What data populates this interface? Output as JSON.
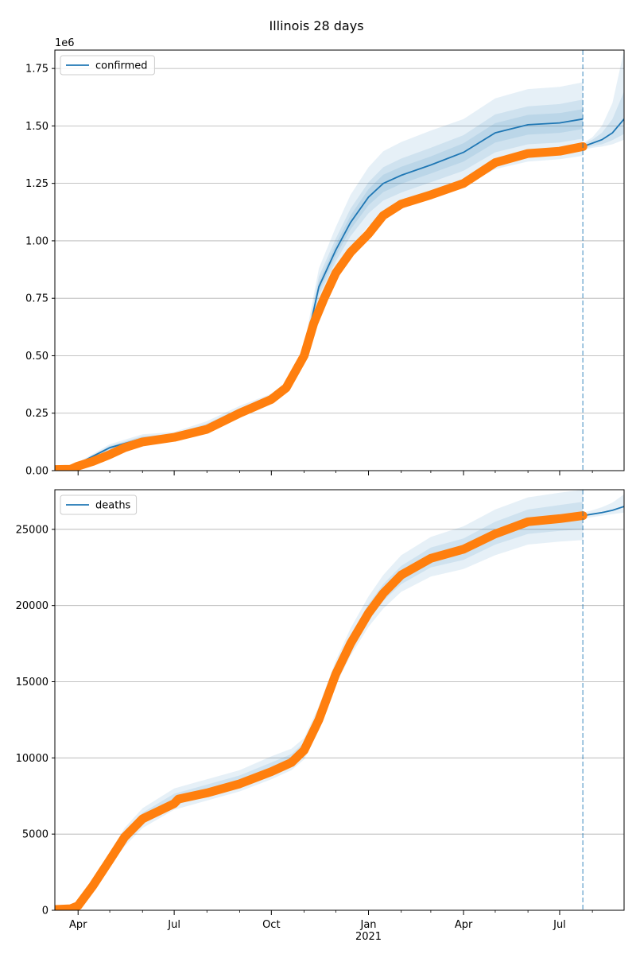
{
  "figure": {
    "title": "Illinois 28 days"
  },
  "colors": {
    "model": "#1f77b4",
    "observed": "#ff7f0e",
    "band": "#1f77b4",
    "grid": "#b0b0b0",
    "forecast_line": "#1f77b4"
  },
  "chart_data": [
    {
      "type": "line",
      "name": "confirmed",
      "legend_location": "upper left",
      "grid": "y",
      "xlim": [
        "2020-03-10",
        "2021-08-31"
      ],
      "ylim": [
        0,
        1830000
      ],
      "y_offset_label": "1e6",
      "y_ticks": [
        0,
        250000,
        500000,
        750000,
        1000000,
        1250000,
        1500000,
        1750000
      ],
      "y_tick_labels": [
        "0.00",
        "0.25",
        "0.50",
        "0.75",
        "1.00",
        "1.25",
        "1.50",
        "1.75"
      ],
      "forecast_start": "2021-07-23",
      "series": [
        {
          "name": "confirmed",
          "role": "model",
          "x": [
            "2020-03-10",
            "2020-04-01",
            "2020-05-01",
            "2020-06-01",
            "2020-07-01",
            "2020-08-01",
            "2020-09-01",
            "2020-10-01",
            "2020-10-20",
            "2020-11-01",
            "2020-11-15",
            "2020-12-01",
            "2020-12-15",
            "2021-01-01",
            "2021-01-15",
            "2021-02-01",
            "2021-03-01",
            "2021-04-01",
            "2021-05-01",
            "2021-06-01",
            "2021-07-01",
            "2021-07-23"
          ],
          "values": [
            5000,
            30000,
            100000,
            140000,
            150000,
            195000,
            260000,
            310000,
            380000,
            510000,
            800000,
            960000,
            1080000,
            1190000,
            1250000,
            1285000,
            1330000,
            1385000,
            1470000,
            1505000,
            1513000,
            1530000
          ]
        },
        {
          "name": "confirmed forecast",
          "role": "forecast",
          "x": [
            "2021-07-23",
            "2021-08-01",
            "2021-08-10",
            "2021-08-20",
            "2021-08-31"
          ],
          "values": [
            1410000,
            1425000,
            1440000,
            1470000,
            1530000
          ]
        },
        {
          "name": "confirmed observed",
          "role": "observed",
          "x": [
            "2020-03-10",
            "2020-03-25",
            "2020-04-01",
            "2020-04-15",
            "2020-05-01",
            "2020-05-15",
            "2020-06-01",
            "2020-07-01",
            "2020-08-01",
            "2020-09-01",
            "2020-10-01",
            "2020-10-15",
            "2020-11-01",
            "2020-11-10",
            "2020-11-20",
            "2020-12-01",
            "2020-12-15",
            "2021-01-01",
            "2021-01-15",
            "2021-02-01",
            "2021-03-01",
            "2021-04-01",
            "2021-05-01",
            "2021-06-01",
            "2021-07-01",
            "2021-07-23"
          ],
          "values": [
            5000,
            6000,
            20000,
            40000,
            70000,
            100000,
            125000,
            145000,
            180000,
            250000,
            310000,
            360000,
            500000,
            640000,
            750000,
            860000,
            950000,
            1030000,
            1110000,
            1160000,
            1200000,
            1250000,
            1340000,
            1380000,
            1390000,
            1410000
          ]
        }
      ],
      "bands": [
        {
          "level": 1,
          "x": [
            "2020-03-10",
            "2020-04-01",
            "2020-05-01",
            "2020-06-01",
            "2020-07-01",
            "2020-08-01",
            "2020-09-01",
            "2020-10-01",
            "2020-10-20",
            "2020-11-01",
            "2020-11-15",
            "2020-12-01",
            "2020-12-15",
            "2021-01-01",
            "2021-01-15",
            "2021-02-01",
            "2021-03-01",
            "2021-04-01",
            "2021-05-01",
            "2021-06-01",
            "2021-07-01",
            "2021-07-23"
          ],
          "lower": [
            4000,
            22000,
            80000,
            122000,
            135000,
            178000,
            240000,
            290000,
            362000,
            490000,
            730000,
            870000,
            970000,
            1065000,
            1115000,
            1150000,
            1190000,
            1238000,
            1312000,
            1345000,
            1355000,
            1370000
          ],
          "upper": [
            6000,
            36000,
            115000,
            158000,
            168000,
            215000,
            282000,
            335000,
            405000,
            545000,
            880000,
            1060000,
            1200000,
            1320000,
            1390000,
            1430000,
            1480000,
            1530000,
            1620000,
            1660000,
            1670000,
            1690000
          ]
        },
        {
          "level": 2,
          "x": [
            "2020-03-10",
            "2020-04-01",
            "2020-05-01",
            "2020-06-01",
            "2020-07-01",
            "2020-08-01",
            "2020-09-01",
            "2020-10-01",
            "2020-10-20",
            "2020-11-01",
            "2020-11-15",
            "2020-12-01",
            "2020-12-15",
            "2021-01-01",
            "2021-01-15",
            "2021-02-01",
            "2021-03-01",
            "2021-04-01",
            "2021-05-01",
            "2021-06-01",
            "2021-07-01",
            "2021-07-23"
          ],
          "lower": [
            4500,
            25000,
            88000,
            130000,
            142000,
            186000,
            250000,
            300000,
            370000,
            500000,
            760000,
            910000,
            1020000,
            1120000,
            1175000,
            1210000,
            1255000,
            1305000,
            1385000,
            1420000,
            1428000,
            1445000
          ],
          "upper": [
            5500,
            33000,
            108000,
            150000,
            160000,
            205000,
            272000,
            322000,
            392000,
            528000,
            845000,
            1010000,
            1140000,
            1255000,
            1320000,
            1358000,
            1405000,
            1460000,
            1550000,
            1585000,
            1595000,
            1615000
          ]
        },
        {
          "level": 3,
          "x": [
            "2020-03-10",
            "2020-04-01",
            "2020-05-01",
            "2020-06-01",
            "2020-07-01",
            "2020-08-01",
            "2020-09-01",
            "2020-10-01",
            "2020-10-20",
            "2020-11-01",
            "2020-11-15",
            "2020-12-01",
            "2020-12-15",
            "2021-01-01",
            "2021-01-15",
            "2021-02-01",
            "2021-03-01",
            "2021-04-01",
            "2021-05-01",
            "2021-06-01",
            "2021-07-01",
            "2021-07-23"
          ],
          "lower": [
            4800,
            27000,
            93000,
            134000,
            146000,
            190000,
            255000,
            305000,
            375000,
            505000,
            780000,
            935000,
            1050000,
            1155000,
            1212000,
            1248000,
            1293000,
            1345000,
            1428000,
            1462000,
            1470000,
            1487000
          ],
          "upper": [
            5200,
            32000,
            105000,
            146000,
            155000,
            200000,
            265000,
            315000,
            385000,
            518000,
            820000,
            985000,
            1110000,
            1225000,
            1288000,
            1322000,
            1367000,
            1425000,
            1512000,
            1548000,
            1556000,
            1573000
          ]
        },
        {
          "level": 1,
          "x": [
            "2021-07-23",
            "2021-08-01",
            "2021-08-10",
            "2021-08-20",
            "2021-08-31"
          ],
          "lower": [
            1395000,
            1405000,
            1410000,
            1420000,
            1440000
          ],
          "upper": [
            1425000,
            1450000,
            1500000,
            1600000,
            1830000
          ]
        },
        {
          "level": 2,
          "x": [
            "2021-07-23",
            "2021-08-01",
            "2021-08-10",
            "2021-08-20",
            "2021-08-31"
          ],
          "lower": [
            1400000,
            1412000,
            1420000,
            1438000,
            1465000
          ],
          "upper": [
            1420000,
            1440000,
            1470000,
            1530000,
            1650000
          ]
        }
      ]
    },
    {
      "type": "line",
      "name": "deaths",
      "legend_location": "upper left",
      "grid": "y",
      "xlim": [
        "2020-03-10",
        "2021-08-31"
      ],
      "ylim": [
        0,
        27600
      ],
      "y_ticks": [
        0,
        5000,
        10000,
        15000,
        20000,
        25000
      ],
      "y_tick_labels": [
        "0",
        "5000",
        "10000",
        "15000",
        "20000",
        "25000"
      ],
      "x_ticks": [
        "2020-04-01",
        "2020-07-01",
        "2020-10-01",
        "2021-01-01",
        "2021-04-01",
        "2021-07-01"
      ],
      "x_tick_labels": [
        "Apr",
        "Jul",
        "Oct",
        "Jan",
        "Apr",
        "Jul"
      ],
      "x_minor_ticks": [
        "2020-05-01",
        "2020-06-01",
        "2020-08-01",
        "2020-09-01",
        "2020-11-01",
        "2020-12-01",
        "2021-02-01",
        "2021-03-01",
        "2021-05-01",
        "2021-06-01",
        "2021-08-01"
      ],
      "x_year_label": "2021",
      "forecast_start": "2021-07-23",
      "series": [
        {
          "name": "deaths",
          "role": "model",
          "x": [
            "2020-03-10",
            "2020-03-25",
            "2020-04-01",
            "2020-04-15",
            "2020-05-01",
            "2020-05-15",
            "2020-06-01",
            "2020-07-01",
            "2020-08-01",
            "2020-09-01",
            "2020-10-01",
            "2020-10-20",
            "2020-11-01",
            "2020-11-15",
            "2020-12-01",
            "2020-12-15",
            "2021-01-01",
            "2021-01-15",
            "2021-02-01",
            "2021-03-01",
            "2021-04-01",
            "2021-05-01",
            "2021-06-01",
            "2021-07-01",
            "2021-07-23"
          ],
          "values": [
            50,
            100,
            300,
            1600,
            3300,
            4800,
            6000,
            7200,
            7800,
            8400,
            9200,
            9800,
            10500,
            12500,
            15500,
            17500,
            19500,
            20800,
            22000,
            23100,
            23700,
            24700,
            25500,
            25700,
            25900
          ]
        },
        {
          "name": "deaths forecast",
          "role": "forecast",
          "x": [
            "2021-07-23",
            "2021-08-01",
            "2021-08-10",
            "2021-08-20",
            "2021-08-31"
          ],
          "values": [
            25900,
            26000,
            26100,
            26250,
            26500
          ]
        },
        {
          "name": "deaths observed",
          "role": "observed",
          "x": [
            "2020-03-10",
            "2020-03-25",
            "2020-04-01",
            "2020-04-15",
            "2020-05-01",
            "2020-05-15",
            "2020-06-01",
            "2020-07-01",
            "2020-07-05",
            "2020-08-01",
            "2020-09-01",
            "2020-10-01",
            "2020-10-20",
            "2020-11-01",
            "2020-11-15",
            "2020-12-01",
            "2020-12-15",
            "2021-01-01",
            "2021-01-15",
            "2021-02-01",
            "2021-03-01",
            "2021-04-01",
            "2021-05-01",
            "2021-06-01",
            "2021-07-01",
            "2021-07-23"
          ],
          "values": [
            50,
            100,
            300,
            1600,
            3300,
            4800,
            6000,
            7000,
            7300,
            7700,
            8300,
            9100,
            9700,
            10500,
            12500,
            15500,
            17500,
            19500,
            20800,
            22000,
            23100,
            23700,
            24700,
            25500,
            25700,
            25900
          ]
        }
      ],
      "bands": [
        {
          "level": 1,
          "x": [
            "2020-03-10",
            "2020-03-25",
            "2020-04-01",
            "2020-04-15",
            "2020-05-01",
            "2020-05-15",
            "2020-06-01",
            "2020-07-01",
            "2020-08-01",
            "2020-09-01",
            "2020-10-01",
            "2020-10-20",
            "2020-11-01",
            "2020-11-15",
            "2020-12-01",
            "2020-12-15",
            "2021-01-01",
            "2021-01-15",
            "2021-02-01",
            "2021-03-01",
            "2021-04-01",
            "2021-05-01",
            "2021-06-01",
            "2021-07-01",
            "2021-07-23"
          ],
          "lower": [
            40,
            80,
            250,
            1400,
            2900,
            4200,
            5400,
            6600,
            7200,
            7800,
            8600,
            9200,
            9900,
            11800,
            14800,
            16700,
            18600,
            19800,
            20900,
            21900,
            22400,
            23300,
            24000,
            24200,
            24300
          ],
          "upper": [
            60,
            130,
            380,
            1900,
            3800,
            5400,
            6700,
            8000,
            8600,
            9200,
            10100,
            10600,
            11300,
            13400,
            16400,
            18500,
            20600,
            22000,
            23300,
            24500,
            25200,
            26300,
            27100,
            27400,
            27600
          ]
        },
        {
          "level": 2,
          "x": [
            "2020-03-10",
            "2020-03-25",
            "2020-04-01",
            "2020-04-15",
            "2020-05-01",
            "2020-05-15",
            "2020-06-01",
            "2020-07-01",
            "2020-08-01",
            "2020-09-01",
            "2020-10-01",
            "2020-10-20",
            "2020-11-01",
            "2020-11-15",
            "2020-12-01",
            "2020-12-15",
            "2021-01-01",
            "2021-01-15",
            "2021-02-01",
            "2021-03-01",
            "2021-04-01",
            "2021-05-01",
            "2021-06-01",
            "2021-07-01",
            "2021-07-23"
          ],
          "lower": [
            45,
            90,
            270,
            1500,
            3100,
            4500,
            5700,
            6900,
            7500,
            8100,
            8900,
            9500,
            10200,
            12100,
            15100,
            17100,
            19000,
            20300,
            21400,
            22500,
            23000,
            24000,
            24700,
            24900,
            25000
          ],
          "upper": [
            55,
            115,
            340,
            1750,
            3550,
            5100,
            6400,
            7650,
            8250,
            8850,
            9700,
            10250,
            11000,
            13000,
            16000,
            18000,
            20100,
            21400,
            22600,
            23800,
            24400,
            25500,
            26300,
            26600,
            26800
          ]
        },
        {
          "level": 1,
          "x": [
            "2021-07-23",
            "2021-08-01",
            "2021-08-10",
            "2021-08-20",
            "2021-08-31"
          ],
          "lower": [
            25700,
            25800,
            25900,
            26000,
            26100
          ],
          "upper": [
            26100,
            26250,
            26450,
            26750,
            27300
          ]
        }
      ]
    }
  ]
}
